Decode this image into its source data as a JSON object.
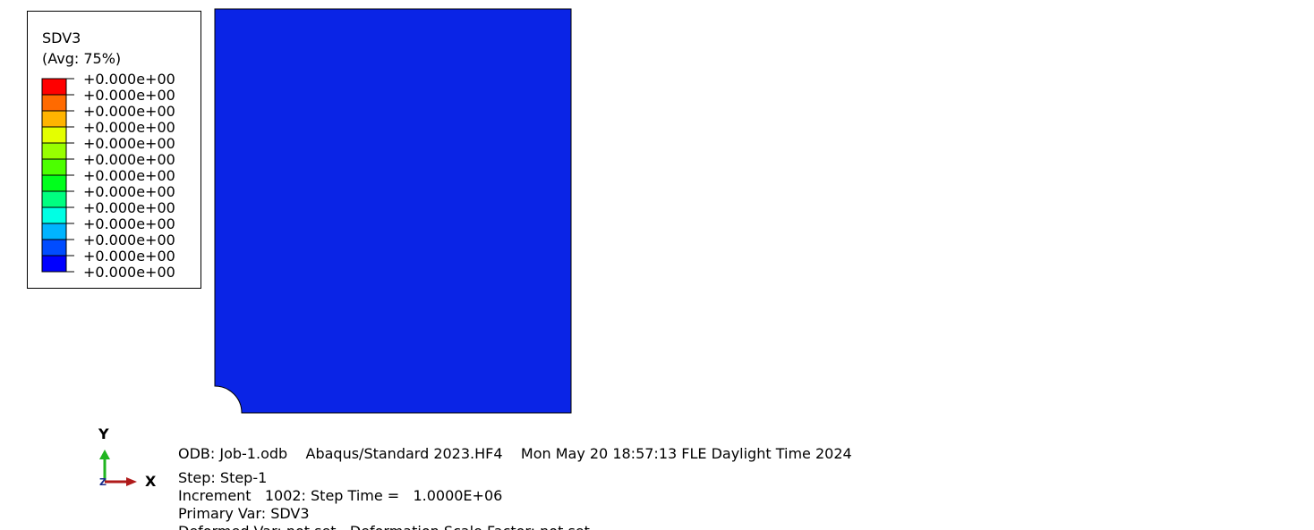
{
  "legend": {
    "title": "SDV3",
    "subtitle": "(Avg: 75%)",
    "labels": [
      "+0.000e+00",
      "+0.000e+00",
      "+0.000e+00",
      "+0.000e+00",
      "+0.000e+00",
      "+0.000e+00",
      "+0.000e+00",
      "+0.000e+00",
      "+0.000e+00",
      "+0.000e+00",
      "+0.000e+00",
      "+0.000e+00",
      "+0.000e+00"
    ],
    "colors": [
      "#ff0000",
      "#ff6a00",
      "#ffb400",
      "#e4ff00",
      "#98ff00",
      "#4cff00",
      "#00ff1c",
      "#00ff80",
      "#00ffe4",
      "#00b4ff",
      "#004cff",
      "#0000ff"
    ]
  },
  "part": {
    "color": "#0a24e6"
  },
  "triad": {
    "y": "Y",
    "x": "X",
    "z": "Z"
  },
  "info": {
    "lines": [
      "ODB: Job-1.odb    Abaqus/Standard 2023.HF4    Mon May 20 18:57:13 FLE Daylight Time 2024",
      "Step: Step-1",
      "Increment   1002: Step Time =   1.0000E+06",
      "Primary Var: SDV3",
      "Deformed Var: not set   Deformation Scale Factor: not set"
    ]
  }
}
